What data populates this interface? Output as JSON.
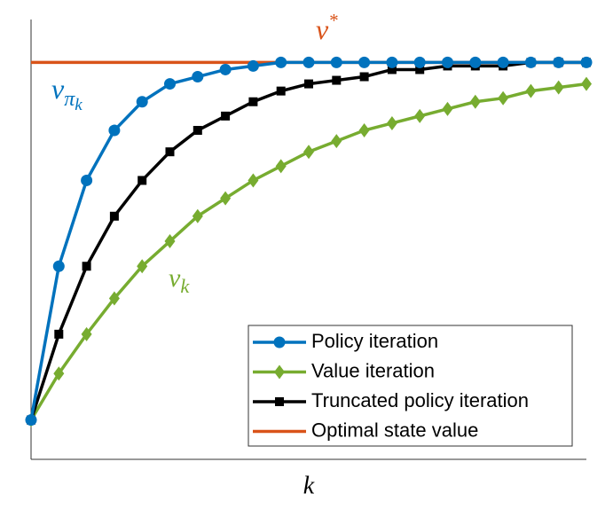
{
  "chart_data": {
    "type": "line",
    "x_label": "k",
    "x": [
      0,
      1,
      2,
      3,
      4,
      5,
      6,
      7,
      8,
      9,
      10,
      11,
      12,
      13,
      14,
      15,
      16,
      17,
      18,
      19,
      20
    ],
    "xlim": [
      0,
      20
    ],
    "ylim": [
      -0.11,
      1.12
    ],
    "series": [
      {
        "name": "Policy iteration",
        "color": "#0072bd",
        "marker": "circle",
        "values": [
          0,
          0.43,
          0.67,
          0.81,
          0.89,
          0.94,
          0.96,
          0.98,
          0.99,
          1,
          1,
          1,
          1,
          1,
          1,
          1,
          1,
          1,
          1,
          1,
          1
        ]
      },
      {
        "name": "Value iteration",
        "color": "#77ac30",
        "marker": "diamond",
        "values": [
          0,
          0.13,
          0.24,
          0.34,
          0.43,
          0.5,
          0.57,
          0.62,
          0.67,
          0.71,
          0.75,
          0.78,
          0.81,
          0.83,
          0.85,
          0.87,
          0.89,
          0.9,
          0.92,
          0.93,
          0.94
        ]
      },
      {
        "name": "Truncated policy iteration",
        "color": "#000000",
        "marker": "square",
        "values": [
          0,
          0.24,
          0.43,
          0.57,
          0.67,
          0.75,
          0.81,
          0.85,
          0.89,
          0.92,
          0.94,
          0.95,
          0.96,
          0.98,
          0.98,
          0.99,
          0.99,
          0.99,
          1,
          1,
          1
        ]
      },
      {
        "name": "Optimal state value",
        "color": "#d95319",
        "marker": "none",
        "values": [
          1,
          1,
          1,
          1,
          1,
          1,
          1,
          1,
          1,
          1,
          1,
          1,
          1,
          1,
          1,
          1,
          1,
          1,
          1,
          1,
          1
        ]
      }
    ],
    "annotations": [
      {
        "text": "v",
        "sup": "*",
        "color": "#d95319"
      },
      {
        "text": "v",
        "sub": "π",
        "subsub": "k",
        "color": "#0072bd"
      },
      {
        "text": "v",
        "sub": "k",
        "color": "#77ac30"
      }
    ]
  }
}
